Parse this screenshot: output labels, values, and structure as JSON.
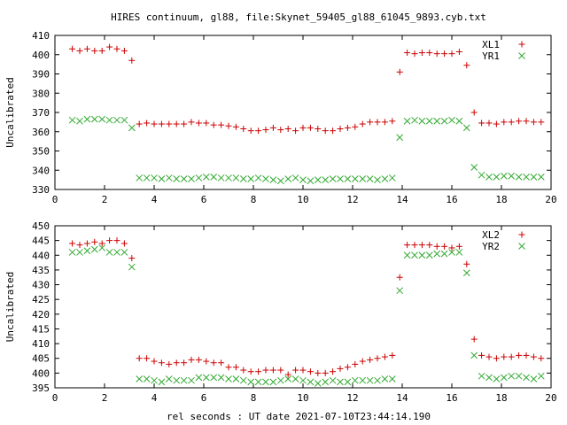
{
  "figure": {
    "title": "HIRES continuum, gl88, file:Skynet_59405_gl88_61045_9893.cyb.txt",
    "xlabel": "rel seconds : UT date 2021-07-10T23:44:14.190"
  },
  "colors": {
    "red": "#cc0000",
    "green": "#33aa33",
    "axis": "#000000"
  },
  "chart_data": [
    {
      "type": "scatter",
      "title": "",
      "xlabel": "",
      "ylabel": "Uncalibrated",
      "xlim": [
        0,
        20
      ],
      "ylim": [
        330,
        410
      ],
      "xticks": [
        0,
        2,
        4,
        6,
        8,
        10,
        12,
        14,
        16,
        18,
        20
      ],
      "yticks": [
        330,
        340,
        350,
        360,
        370,
        380,
        390,
        400,
        410
      ],
      "legend_position": "top-right",
      "x": [
        0.7,
        1.0,
        1.3,
        1.6,
        1.9,
        2.2,
        2.5,
        2.8,
        3.1,
        3.4,
        3.7,
        4.0,
        4.3,
        4.6,
        4.9,
        5.2,
        5.5,
        5.8,
        6.1,
        6.4,
        6.7,
        7.0,
        7.3,
        7.6,
        7.9,
        8.2,
        8.5,
        8.8,
        9.1,
        9.4,
        9.7,
        10.0,
        10.3,
        10.6,
        10.9,
        11.2,
        11.5,
        11.8,
        12.1,
        12.4,
        12.7,
        13.0,
        13.3,
        13.6,
        13.9,
        14.2,
        14.5,
        14.8,
        15.1,
        15.4,
        15.7,
        16.0,
        16.3,
        16.6,
        16.9,
        17.2,
        17.5,
        17.8,
        18.1,
        18.4,
        18.7,
        19.0,
        19.3,
        19.6
      ],
      "series": [
        {
          "name": "XL1",
          "marker": "plus",
          "color": "#cc0000",
          "values": [
            403,
            402,
            403,
            402,
            402,
            404,
            403,
            402,
            397,
            364,
            364.5,
            364,
            364,
            364,
            364,
            364,
            365,
            364.5,
            364.5,
            363.5,
            363.5,
            363,
            362.5,
            361.5,
            360.5,
            360.5,
            361,
            362,
            361,
            361.5,
            360.5,
            362,
            362,
            361.5,
            360.5,
            360.5,
            361.5,
            362,
            362.5,
            364,
            365,
            365,
            365,
            365.5,
            391,
            401,
            400.5,
            401,
            401,
            400.5,
            400.5,
            400.5,
            401.5,
            394.5,
            370,
            364.5,
            364.5,
            364,
            365,
            365,
            365.5,
            365.5,
            365,
            365
          ]
        },
        {
          "name": "YR1",
          "marker": "cross",
          "color": "#33aa33",
          "values": [
            366,
            365.5,
            366.5,
            366.5,
            366.5,
            366,
            366,
            366,
            362,
            336,
            336,
            336,
            335.5,
            336,
            335.5,
            335.5,
            335.5,
            336,
            336.5,
            336.5,
            336,
            336,
            336,
            335.5,
            335.5,
            336,
            335.5,
            335,
            334.5,
            335.5,
            336,
            335,
            334.5,
            335,
            335,
            335.5,
            335.5,
            335.5,
            335.5,
            335.5,
            335.5,
            335,
            335.5,
            336,
            357,
            365.5,
            366,
            365.5,
            365.5,
            365.5,
            365.5,
            366,
            365.5,
            362,
            341.5,
            337.5,
            336.5,
            336.5,
            337,
            337,
            336.5,
            336.5,
            336.5,
            336.5
          ]
        }
      ]
    },
    {
      "type": "scatter",
      "title": "",
      "xlabel": "rel seconds : UT date 2021-07-10T23:44:14.190",
      "ylabel": "Uncalibrated",
      "xlim": [
        0,
        20
      ],
      "ylim": [
        395,
        450
      ],
      "xticks": [
        0,
        2,
        4,
        6,
        8,
        10,
        12,
        14,
        16,
        18,
        20
      ],
      "yticks": [
        395,
        400,
        405,
        410,
        415,
        420,
        425,
        430,
        435,
        440,
        445,
        450
      ],
      "legend_position": "top-right",
      "x": [
        0.7,
        1.0,
        1.3,
        1.6,
        1.9,
        2.2,
        2.5,
        2.8,
        3.1,
        3.4,
        3.7,
        4.0,
        4.3,
        4.6,
        4.9,
        5.2,
        5.5,
        5.8,
        6.1,
        6.4,
        6.7,
        7.0,
        7.3,
        7.6,
        7.9,
        8.2,
        8.5,
        8.8,
        9.1,
        9.4,
        9.7,
        10.0,
        10.3,
        10.6,
        10.9,
        11.2,
        11.5,
        11.8,
        12.1,
        12.4,
        12.7,
        13.0,
        13.3,
        13.6,
        13.9,
        14.2,
        14.5,
        14.8,
        15.1,
        15.4,
        15.7,
        16.0,
        16.3,
        16.6,
        16.9,
        17.2,
        17.5,
        17.8,
        18.1,
        18.4,
        18.7,
        19.0,
        19.3,
        19.6
      ],
      "series": [
        {
          "name": "XL2",
          "marker": "plus",
          "color": "#cc0000",
          "values": [
            444,
            443.5,
            444,
            444.5,
            444,
            445,
            445,
            444,
            439,
            405,
            405,
            404,
            403.5,
            403,
            403.5,
            403.5,
            404.5,
            404.5,
            404,
            403.5,
            403.5,
            402,
            402,
            401,
            400.5,
            400.5,
            401,
            401,
            401,
            399.5,
            401,
            401,
            400.5,
            400,
            400,
            400.5,
            401.5,
            402,
            403,
            404,
            404.5,
            405,
            405.5,
            406,
            432.5,
            443.5,
            443.5,
            443.5,
            443.5,
            443,
            443,
            442.5,
            443,
            437,
            411.5,
            406,
            405.5,
            405,
            405.5,
            405.5,
            406,
            406,
            405.5,
            405
          ]
        },
        {
          "name": "YR2",
          "marker": "cross",
          "color": "#33aa33",
          "values": [
            441,
            441,
            441.5,
            442,
            442.5,
            441,
            441,
            441,
            436,
            398,
            398,
            397.5,
            397,
            398,
            397.5,
            397.5,
            397.5,
            398.5,
            398.5,
            398.5,
            398.5,
            398,
            398,
            397.5,
            397,
            397,
            397,
            397,
            397.5,
            398,
            398,
            397.5,
            397,
            396.5,
            397,
            397.5,
            397,
            397,
            397.5,
            397.5,
            397.5,
            397.5,
            398,
            398,
            428,
            440,
            440,
            440,
            440,
            440.5,
            440.5,
            441,
            441,
            434,
            406,
            399,
            398.5,
            398,
            398.5,
            399,
            399,
            398.5,
            398,
            399
          ]
        }
      ]
    }
  ]
}
